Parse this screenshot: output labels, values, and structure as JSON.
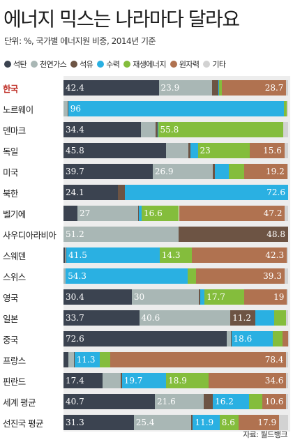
{
  "title": "에너지 믹스는 나라마다 달라요",
  "subtitle": "단위: %, 국가별 에너지원 비중, 2014년 기준",
  "source": "자료: 월드뱅크",
  "colors": {
    "석탄": "#3b4350",
    "천연가스": "#a9b7b5",
    "석유": "#6d5444",
    "수력": "#2ab0e2",
    "재생에너지": "#84bd3c",
    "원자력": "#b07250",
    "기타": "#d2d2d2"
  },
  "chart_data": {
    "type": "bar",
    "orientation": "horizontal",
    "stacked": true,
    "unit": "%",
    "legend": [
      {
        "name": "석탄",
        "color": "#3b4350"
      },
      {
        "name": "천연가스",
        "color": "#a9b7b5"
      },
      {
        "name": "석유",
        "color": "#6d5444"
      },
      {
        "name": "수력",
        "color": "#2ab0e2"
      },
      {
        "name": "재생에너지",
        "color": "#84bd3c"
      },
      {
        "name": "원자력",
        "color": "#b07250"
      },
      {
        "name": "기타",
        "color": "#d2d2d2"
      }
    ],
    "categories": [
      "한국",
      "노르웨이",
      "덴마크",
      "독일",
      "미국",
      "북한",
      "벨기에",
      "사우디아라비아",
      "스웨덴",
      "스위스",
      "영국",
      "일본",
      "중국",
      "프랑스",
      "핀란드",
      "세계 평균",
      "선진국 평균"
    ],
    "highlight": "한국",
    "rows": [
      {
        "name": "한국",
        "values": [
          42.4,
          23.9,
          2.6,
          0.5,
          1.1,
          28.7,
          0.8
        ],
        "labels": [
          "42.4",
          "23.9",
          "",
          "",
          "",
          "28.7",
          ""
        ]
      },
      {
        "name": "노르웨이",
        "values": [
          0.1,
          1.9,
          0.1,
          96,
          1.4,
          0,
          0.5
        ],
        "labels": [
          "",
          "",
          "",
          "96",
          "",
          "",
          ""
        ]
      },
      {
        "name": "덴마크",
        "values": [
          34.4,
          6.6,
          1.0,
          0.1,
          55.8,
          0,
          2.1
        ],
        "labels": [
          "34.4",
          "",
          "",
          "",
          "55.8",
          "",
          ""
        ]
      },
      {
        "name": "독일",
        "values": [
          45.8,
          9.7,
          0.9,
          3.4,
          23,
          15.6,
          1.6
        ],
        "labels": [
          "45.8",
          "",
          "",
          "",
          "23",
          "15.6",
          ""
        ]
      },
      {
        "name": "미국",
        "values": [
          39.7,
          26.9,
          0.9,
          6.1,
          6.8,
          19.2,
          0.4
        ],
        "labels": [
          "39.7",
          "26.9",
          "",
          "",
          "",
          "19.2",
          ""
        ]
      },
      {
        "name": "북한",
        "values": [
          24.1,
          0,
          3.3,
          72.6,
          0,
          0,
          0
        ],
        "labels": [
          "24.1",
          "",
          "",
          "72.6",
          "",
          "",
          ""
        ]
      },
      {
        "name": "벨기에",
        "values": [
          6.2,
          27,
          0.3,
          1.3,
          16.6,
          47.2,
          1.4
        ],
        "labels": [
          "",
          "27",
          "",
          "",
          "16.6",
          "47.2",
          ""
        ]
      },
      {
        "name": "사우디아라비아",
        "values": [
          0,
          51.2,
          48.8,
          0,
          0,
          0,
          0
        ],
        "labels": [
          "",
          "51.2",
          "48.8",
          "",
          "",
          "",
          ""
        ]
      },
      {
        "name": "스웨덴",
        "values": [
          0.5,
          0.5,
          0.3,
          41.5,
          14.3,
          42.3,
          0.6
        ],
        "labels": [
          "",
          "",
          "",
          "41.5",
          "14.3",
          "42.3",
          ""
        ]
      },
      {
        "name": "스위스",
        "values": [
          0,
          0.9,
          0.1,
          54.3,
          3.8,
          39.3,
          1.6
        ],
        "labels": [
          "",
          "",
          "",
          "54.3",
          "",
          "39.3",
          ""
        ]
      },
      {
        "name": "영국",
        "values": [
          30.4,
          30,
          0.6,
          1.8,
          17.7,
          19,
          0.5
        ],
        "labels": [
          "30.4",
          "30",
          "",
          "",
          "17.7",
          "19",
          ""
        ]
      },
      {
        "name": "일본",
        "values": [
          33.7,
          40.6,
          11.2,
          8.4,
          5.3,
          0,
          0.8
        ],
        "labels": [
          "33.7",
          "40.6",
          "11.2",
          "",
          "",
          "",
          ""
        ]
      },
      {
        "name": "중국",
        "values": [
          72.6,
          1.9,
          0.2,
          18.6,
          4.3,
          2.3,
          0.1
        ],
        "labels": [
          "72.6",
          "",
          "",
          "18.6",
          "",
          "",
          ""
        ]
      },
      {
        "name": "프랑스",
        "values": [
          2.2,
          2.4,
          0.3,
          11.3,
          4.6,
          78.4,
          0.8
        ],
        "labels": [
          "",
          "",
          "",
          "11.3",
          "",
          "78.4",
          ""
        ]
      },
      {
        "name": "핀란드",
        "values": [
          17.4,
          8.2,
          0.4,
          19.7,
          18.9,
          34.6,
          0.8
        ],
        "labels": [
          "17.4",
          "",
          "",
          "19.7",
          "18.9",
          "34.6",
          ""
        ]
      },
      {
        "name": "세계 평균",
        "values": [
          40.7,
          21.6,
          4.2,
          16.2,
          5.9,
          10.6,
          0.8
        ],
        "labels": [
          "40.7",
          "21.6",
          "",
          "16.2",
          "",
          "10.6",
          ""
        ]
      },
      {
        "name": "선진국 평균",
        "values": [
          31.3,
          25.4,
          0.9,
          11.9,
          8.6,
          17.9,
          4.0
        ],
        "labels": [
          "31.3",
          "25.4",
          "",
          "11.9",
          "8.6",
          "17.9",
          ""
        ]
      }
    ]
  }
}
